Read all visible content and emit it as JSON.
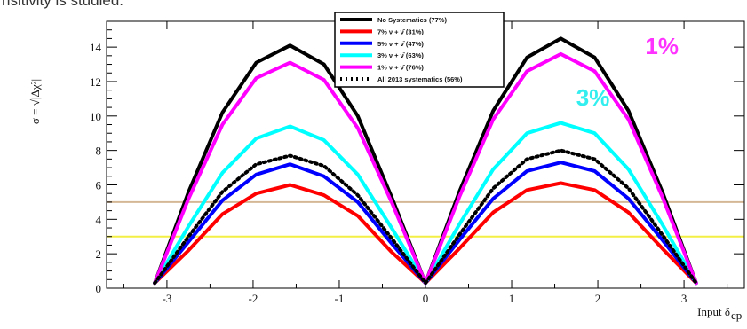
{
  "caption_text": "nsitivity is studied.",
  "chart_data": {
    "type": "line",
    "ylabel": "σ = √|Δχ²|",
    "xlabel": "Input δ",
    "xlabel_subscript": "cp",
    "xlim": [
      -3.7,
      3.7
    ],
    "ylim": [
      0,
      15.5
    ],
    "x_ticks": [
      -3,
      -2,
      -1,
      0,
      1,
      2,
      3
    ],
    "y_ticks": [
      0,
      2,
      4,
      6,
      8,
      10,
      12,
      14
    ],
    "x_tick_labels": [
      "-3",
      "-2",
      "-1",
      "0",
      "1",
      "2",
      "3"
    ],
    "y_tick_labels": [
      "0",
      "2",
      "4",
      "6",
      "8",
      "10",
      "12",
      "14"
    ],
    "horizontal_lines": [
      {
        "y": 5,
        "color": "#d4b896"
      },
      {
        "y": 3,
        "color": "#f3ef45"
      }
    ],
    "x": [
      -3.1416,
      -2.7489,
      -2.3562,
      -1.9635,
      -1.5708,
      -1.1781,
      -0.7854,
      -0.3927,
      0,
      0.3927,
      0.7854,
      1.1781,
      1.5708,
      1.9635,
      2.3562,
      2.7489,
      3.1416
    ],
    "series": [
      {
        "name": "No Systematics (77%)",
        "color": "#000000",
        "style": "solid",
        "values": [
          0.3,
          5.6,
          10.2,
          13.1,
          14.1,
          13.0,
          10.0,
          5.3,
          0.3,
          5.6,
          10.3,
          13.4,
          14.5,
          13.4,
          10.3,
          5.6,
          0.3
        ]
      },
      {
        "name": "7% ν + ν̄ (31%)",
        "color": "#ff0000",
        "style": "solid",
        "values": [
          0.3,
          2.2,
          4.3,
          5.5,
          6.0,
          5.4,
          4.2,
          2.1,
          0.3,
          2.3,
          4.4,
          5.7,
          6.1,
          5.7,
          4.4,
          2.3,
          0.3
        ]
      },
      {
        "name": "5% ν + ν̄ (47%)",
        "color": "#0000ff",
        "style": "solid",
        "values": [
          0.3,
          2.7,
          5.1,
          6.6,
          7.2,
          6.5,
          5.0,
          2.6,
          0.3,
          2.8,
          5.2,
          6.8,
          7.3,
          6.8,
          5.2,
          2.8,
          0.3
        ]
      },
      {
        "name": "3% ν + ν̄ (63%)",
        "color": "#00ffff",
        "style": "solid",
        "values": [
          0.3,
          3.6,
          6.7,
          8.7,
          9.4,
          8.6,
          6.6,
          3.5,
          0.3,
          3.7,
          6.9,
          9.0,
          9.6,
          9.0,
          6.9,
          3.7,
          0.3
        ]
      },
      {
        "name": "1% ν + ν̄ (76%)",
        "color": "#ff00ff",
        "style": "solid",
        "values": [
          0.3,
          5.2,
          9.5,
          12.2,
          13.1,
          12.1,
          9.3,
          5.0,
          0.3,
          5.3,
          9.8,
          12.6,
          13.6,
          12.6,
          9.8,
          5.3,
          0.3
        ]
      },
      {
        "name": "All 2013 systematics (56%)",
        "color": "#000000",
        "style": "dotted",
        "values": [
          0.3,
          3.0,
          5.6,
          7.2,
          7.7,
          7.1,
          5.4,
          2.9,
          0.3,
          3.1,
          5.8,
          7.5,
          8.0,
          7.5,
          5.8,
          3.1,
          0.3
        ]
      }
    ],
    "annotations": [
      {
        "text": "1%",
        "color": "#ff33ff",
        "x": 2.55,
        "y": 13.6
      },
      {
        "text": "3%",
        "color": "#33eeee",
        "x": 1.75,
        "y": 10.6
      }
    ]
  }
}
